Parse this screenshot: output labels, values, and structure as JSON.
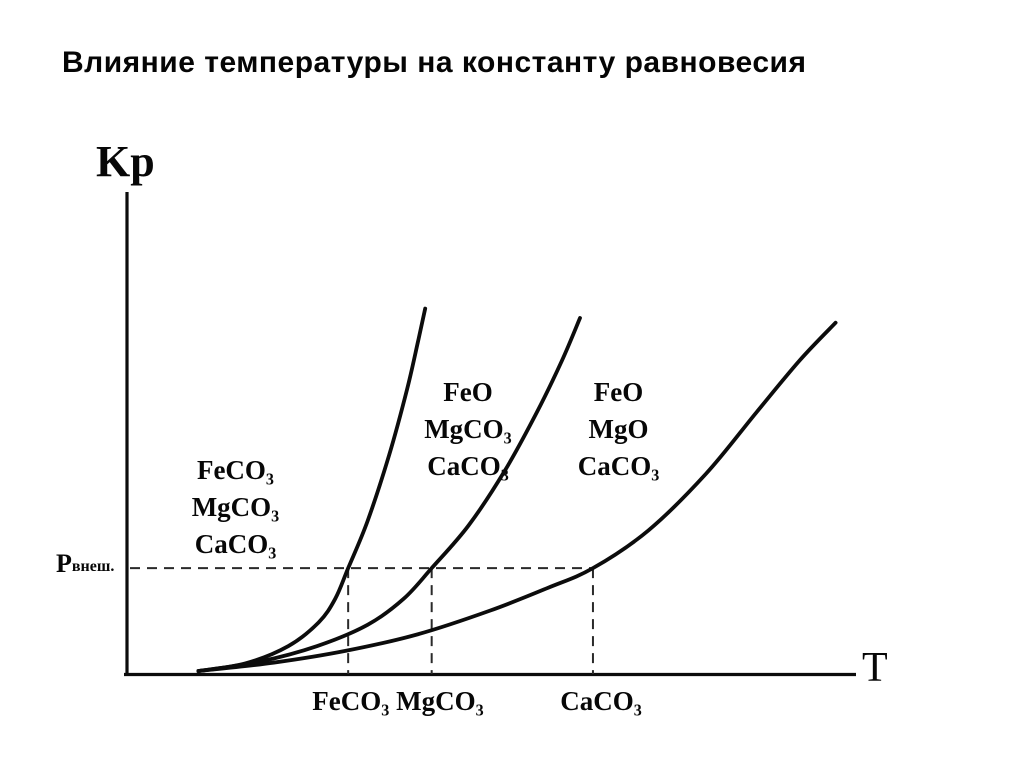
{
  "chart_data": {
    "type": "line",
    "title": "Влияние температуры на константу равновесия",
    "xlabel": "T",
    "ylabel": "Kp",
    "xlim": [
      0,
      10
    ],
    "ylim": [
      0,
      10
    ],
    "grid": false,
    "legend": "none",
    "series": [
      {
        "name": "FeCO₃",
        "points": [
          [
            0.95,
            0.02
          ],
          [
            1.6,
            0.18
          ],
          [
            2.2,
            0.55
          ],
          [
            2.62,
            1.05
          ],
          [
            2.85,
            1.55
          ],
          [
            3.03,
            2.2
          ],
          [
            3.3,
            3.2
          ],
          [
            3.6,
            4.6
          ],
          [
            3.85,
            6.0
          ],
          [
            4.0,
            7.0
          ],
          [
            4.1,
            7.7
          ]
        ]
      },
      {
        "name": "MgCO₃",
        "points": [
          [
            0.95,
            0.02
          ],
          [
            1.8,
            0.22
          ],
          [
            2.6,
            0.55
          ],
          [
            3.3,
            1.0
          ],
          [
            3.8,
            1.55
          ],
          [
            4.19,
            2.2
          ],
          [
            4.7,
            3.1
          ],
          [
            5.2,
            4.25
          ],
          [
            5.65,
            5.5
          ],
          [
            6.0,
            6.6
          ],
          [
            6.25,
            7.5
          ]
        ]
      },
      {
        "name": "CaCO₃",
        "points": [
          [
            0.95,
            0.02
          ],
          [
            2.0,
            0.2
          ],
          [
            3.0,
            0.45
          ],
          [
            4.0,
            0.8
          ],
          [
            5.0,
            1.3
          ],
          [
            5.8,
            1.78
          ],
          [
            6.43,
            2.2
          ],
          [
            7.2,
            3.0
          ],
          [
            8.0,
            4.2
          ],
          [
            8.7,
            5.5
          ],
          [
            9.3,
            6.6
          ],
          [
            9.8,
            7.4
          ]
        ]
      }
    ],
    "p_external_level": 2.2,
    "decomposition_temperatures_x": [
      3.03,
      4.19,
      6.43
    ]
  },
  "labels": {
    "y_axis": "Kp",
    "x_axis": "T",
    "p_external_main": "P",
    "p_external_sub": "внеш.",
    "phase_left": [
      "FeCO₃",
      "MgCO₃",
      "CaCO₃"
    ],
    "phase_mid": [
      "FeO",
      "MgCO₃",
      "CaCO₃"
    ],
    "phase_right": [
      "FeO",
      "MgO",
      "CaCO₃"
    ],
    "x_marks": [
      "FeCO₃ MgCO₃",
      "CaCO₃"
    ]
  },
  "colors": {
    "curve": "#0c0c0c",
    "axis": "#0c0c0c",
    "dashed_guide": "#2a2a2a",
    "text": "#050505",
    "background": "#ffffff"
  }
}
